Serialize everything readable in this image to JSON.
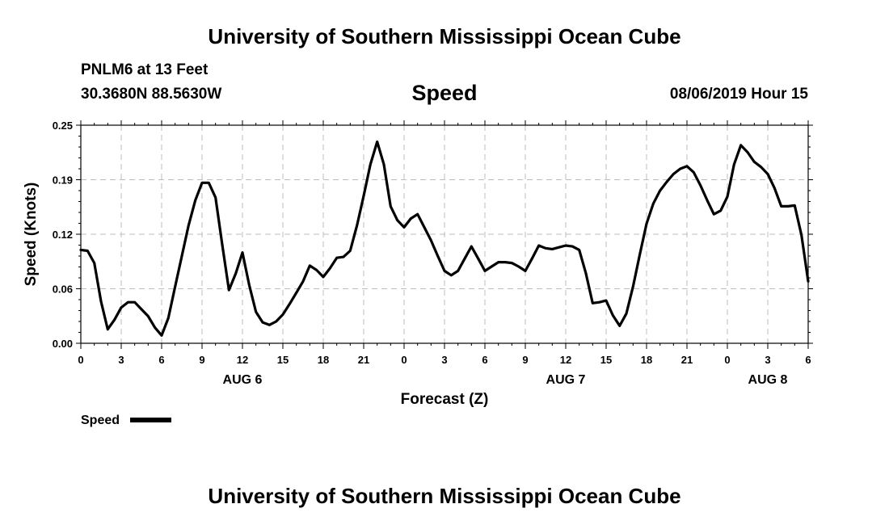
{
  "header": {
    "title": "University of Southern Mississippi Ocean Cube",
    "station": "PNLM6 at 13 Feet",
    "coords": "30.3680N 88.5630W",
    "run_time": "08/06/2019 Hour 15"
  },
  "footer": {
    "title": "University of Southern Mississippi Ocean Cube"
  },
  "chart_data": {
    "type": "line",
    "title": "Speed",
    "xlabel": "Forecast (Z)",
    "ylabel": "Speed (Knots)",
    "ylim": [
      0,
      0.25
    ],
    "yticks": [
      "0.00",
      "0.06",
      "0.12",
      "0.19",
      "0.25"
    ],
    "ytick_values": [
      0,
      0.0625,
      0.125,
      0.1875,
      0.25
    ],
    "xlim": [
      0,
      54
    ],
    "x_unit": "forecast hours from Aug 6 00Z",
    "xticks": [
      {
        "h": 0,
        "label": "0"
      },
      {
        "h": 3,
        "label": "3"
      },
      {
        "h": 6,
        "label": "6"
      },
      {
        "h": 9,
        "label": "9"
      },
      {
        "h": 12,
        "label": "12"
      },
      {
        "h": 15,
        "label": "15"
      },
      {
        "h": 18,
        "label": "18"
      },
      {
        "h": 21,
        "label": "21"
      },
      {
        "h": 24,
        "label": "0"
      },
      {
        "h": 27,
        "label": "3"
      },
      {
        "h": 30,
        "label": "6"
      },
      {
        "h": 33,
        "label": "9"
      },
      {
        "h": 36,
        "label": "12"
      },
      {
        "h": 39,
        "label": "15"
      },
      {
        "h": 42,
        "label": "18"
      },
      {
        "h": 45,
        "label": "21"
      },
      {
        "h": 48,
        "label": "0"
      },
      {
        "h": 51,
        "label": "3"
      },
      {
        "h": 54,
        "label": "6"
      }
    ],
    "day_labels": [
      {
        "h": 12,
        "label": "AUG 6"
      },
      {
        "h": 36,
        "label": "AUG 7"
      },
      {
        "h": 51,
        "label": "AUG 8"
      }
    ],
    "grid": true,
    "legend": {
      "position": "bottom-left",
      "color": "#000000"
    },
    "series": [
      {
        "name": "Speed",
        "x": [
          0,
          0.5,
          1,
          1.5,
          2,
          2.5,
          3,
          3.5,
          4,
          4.5,
          5,
          5.5,
          6,
          6.5,
          7,
          7.5,
          8,
          8.5,
          9,
          9.5,
          10,
          10.5,
          11,
          11.5,
          12,
          12.5,
          13,
          13.5,
          14,
          14.5,
          15,
          15.5,
          16,
          16.5,
          17,
          17.5,
          18,
          18.5,
          19,
          19.5,
          20,
          20.5,
          21,
          21.5,
          22,
          22.5,
          23,
          23.5,
          24,
          24.5,
          25,
          25.5,
          26,
          26.5,
          27,
          27.5,
          28,
          28.5,
          29,
          29.5,
          30,
          30.5,
          31,
          31.5,
          32,
          32.5,
          33,
          33.5,
          34,
          34.5,
          35,
          35.5,
          36,
          36.5,
          37,
          37.5,
          38,
          38.5,
          39,
          39.5,
          40,
          40.5,
          41,
          41.5,
          42,
          42.5,
          43,
          43.5,
          44,
          44.5,
          45,
          45.5,
          46,
          46.5,
          47,
          47.5,
          48,
          48.5,
          49,
          49.5,
          50,
          50.5,
          51,
          51.5,
          52,
          52.5,
          53,
          53.5,
          54
        ],
        "values": [
          0.107,
          0.106,
          0.092,
          0.048,
          0.016,
          0.027,
          0.041,
          0.047,
          0.047,
          0.039,
          0.031,
          0.018,
          0.009,
          0.029,
          0.065,
          0.1,
          0.135,
          0.164,
          0.184,
          0.184,
          0.167,
          0.113,
          0.061,
          0.08,
          0.104,
          0.067,
          0.036,
          0.024,
          0.021,
          0.025,
          0.033,
          0.045,
          0.058,
          0.071,
          0.089,
          0.084,
          0.076,
          0.086,
          0.098,
          0.099,
          0.106,
          0.135,
          0.169,
          0.205,
          0.231,
          0.205,
          0.157,
          0.141,
          0.133,
          0.143,
          0.148,
          0.133,
          0.118,
          0.1,
          0.083,
          0.078,
          0.083,
          0.097,
          0.111,
          0.097,
          0.083,
          0.088,
          0.093,
          0.093,
          0.092,
          0.088,
          0.083,
          0.097,
          0.112,
          0.109,
          0.108,
          0.11,
          0.112,
          0.111,
          0.107,
          0.08,
          0.046,
          0.047,
          0.049,
          0.032,
          0.02,
          0.034,
          0.065,
          0.102,
          0.137,
          0.16,
          0.175,
          0.185,
          0.194,
          0.2,
          0.203,
          0.196,
          0.181,
          0.164,
          0.148,
          0.152,
          0.168,
          0.205,
          0.227,
          0.219,
          0.208,
          0.202,
          0.194,
          0.178,
          0.157,
          0.157,
          0.158,
          0.124,
          0.071
        ]
      }
    ]
  }
}
